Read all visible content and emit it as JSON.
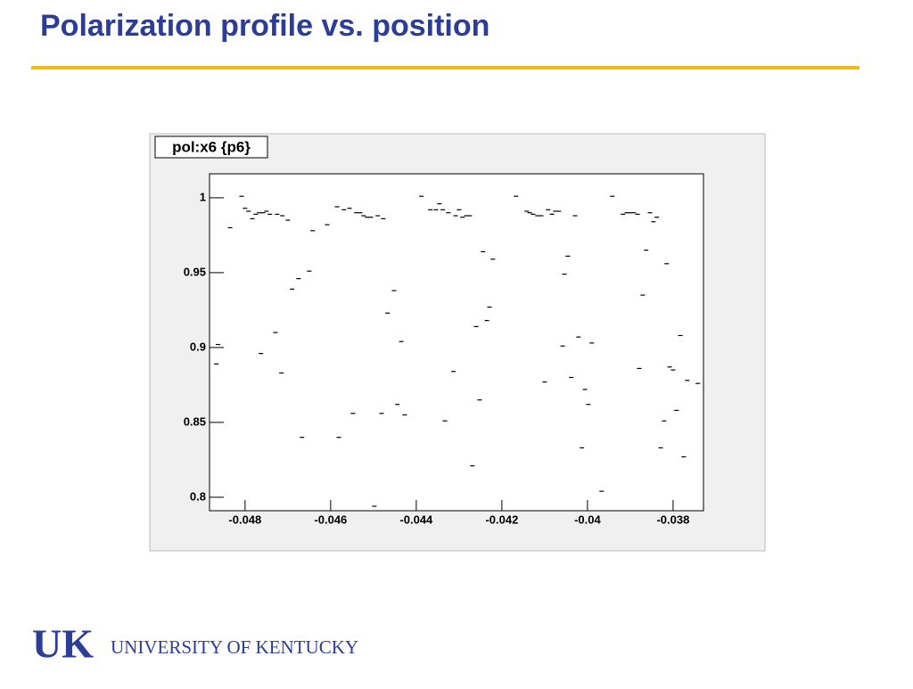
{
  "slide": {
    "title": "Polarization profile vs. position",
    "logo_mark": "UK",
    "logo_text": "UNIVERSITY OF KENTUCKY"
  },
  "chart_data": {
    "type": "scatter",
    "title": "pol:x6 {p6}",
    "color": "#000000",
    "x": [
      -0.04863,
      -0.04867,
      -0.04835,
      -0.04808,
      -0.048,
      -0.04792,
      -0.04783,
      -0.04775,
      -0.04767,
      -0.04758,
      -0.0475,
      -0.04742,
      -0.04725,
      -0.04713,
      -0.047,
      -0.04763,
      -0.04729,
      -0.04715,
      -0.0469,
      -0.04675,
      -0.04667,
      -0.0465,
      -0.04642,
      -0.04608,
      -0.04585,
      -0.04581,
      -0.04569,
      -0.04556,
      -0.04548,
      -0.0454,
      -0.04531,
      -0.04523,
      -0.04515,
      -0.04506,
      -0.04498,
      -0.0449,
      -0.04481,
      -0.04477,
      -0.04467,
      -0.04452,
      -0.04444,
      -0.04435,
      -0.04427,
      -0.04388,
      -0.04367,
      -0.04354,
      -0.04346,
      -0.04338,
      -0.04333,
      -0.04325,
      -0.04313,
      -0.04308,
      -0.043,
      -0.04292,
      -0.04283,
      -0.04275,
      -0.04269,
      -0.0426,
      -0.04252,
      -0.04244,
      -0.04235,
      -0.04229,
      -0.04221,
      -0.04167,
      -0.04142,
      -0.04135,
      -0.04127,
      -0.04117,
      -0.04108,
      -0.041,
      -0.04092,
      -0.04083,
      -0.04075,
      -0.04067,
      -0.04058,
      -0.04054,
      -0.04046,
      -0.04038,
      -0.04029,
      -0.04021,
      -0.04013,
      -0.04006,
      -0.03998,
      -0.0399,
      -0.03967,
      -0.03942,
      -0.03917,
      -0.03908,
      -0.039,
      -0.03892,
      -0.03883,
      -0.03879,
      -0.03871,
      -0.03863,
      -0.03854,
      -0.03846,
      -0.03838,
      -0.03829,
      -0.03821,
      -0.03815,
      -0.03808,
      -0.038,
      -0.03792,
      -0.03783,
      -0.03775,
      -0.03767,
      -0.03742
    ],
    "values": [
      0.902,
      0.889,
      0.98,
      1.001,
      0.993,
      0.991,
      0.986,
      0.989,
      0.99,
      0.99,
      0.991,
      0.989,
      0.989,
      0.988,
      0.985,
      0.896,
      0.91,
      0.883,
      0.939,
      0.946,
      0.84,
      0.951,
      0.978,
      0.982,
      0.994,
      0.84,
      0.992,
      0.993,
      0.856,
      0.99,
      0.99,
      0.988,
      0.987,
      0.987,
      0.794,
      0.988,
      0.856,
      0.986,
      0.923,
      0.938,
      0.862,
      0.904,
      0.855,
      1.001,
      0.992,
      0.992,
      0.996,
      0.992,
      0.851,
      0.99,
      0.884,
      0.988,
      0.992,
      0.987,
      0.988,
      0.988,
      0.821,
      0.914,
      0.865,
      0.964,
      0.918,
      0.927,
      0.959,
      1.001,
      0.991,
      0.99,
      0.989,
      0.988,
      0.988,
      0.877,
      0.992,
      0.989,
      0.991,
      0.991,
      0.901,
      0.949,
      0.961,
      0.88,
      0.988,
      0.907,
      0.833,
      0.872,
      0.862,
      0.903,
      0.804,
      1.001,
      0.989,
      0.99,
      0.99,
      0.99,
      0.989,
      0.886,
      0.935,
      0.965,
      0.99,
      0.984,
      0.987,
      0.833,
      0.851,
      0.956,
      0.887,
      0.885,
      0.858,
      0.908,
      0.827,
      0.878,
      0.876
    ],
    "xlim": [
      -0.04883,
      -0.03729
    ],
    "ylim": [
      0.791,
      1.016
    ],
    "xticks": [
      -0.048,
      -0.046,
      -0.044,
      -0.042,
      -0.04,
      -0.038
    ],
    "yticks": [
      0.8,
      0.85,
      0.9,
      0.95,
      1
    ]
  }
}
